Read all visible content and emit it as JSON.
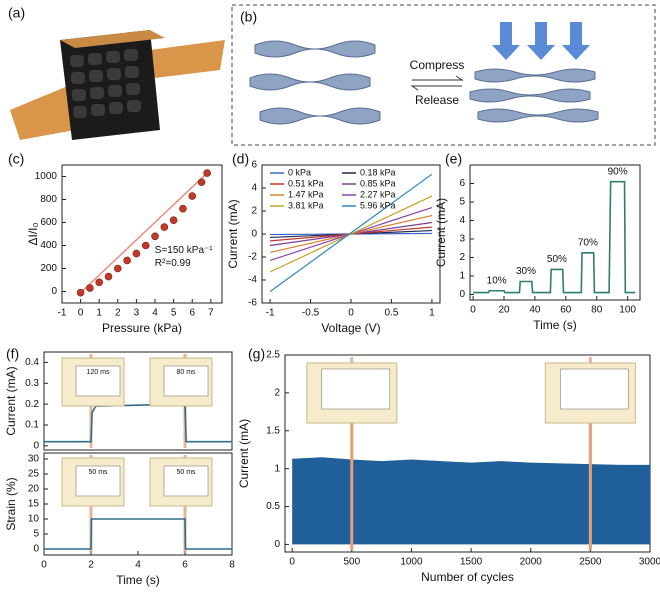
{
  "panels": {
    "a": {
      "label": "(a)"
    },
    "b": {
      "label": "(b)",
      "compress": "Compress",
      "release": "Release"
    }
  },
  "chart_data": [
    {
      "type": "scatter",
      "label": "(c)",
      "xlabel": "Pressure (kPa)",
      "ylabel": "ΔI/I₀",
      "x": [
        0,
        0.5,
        1,
        1.5,
        2,
        2.5,
        3,
        3.5,
        4,
        4.5,
        5,
        5.5,
        6,
        6.5,
        6.8
      ],
      "values": [
        -10,
        30,
        80,
        130,
        200,
        270,
        330,
        400,
        480,
        560,
        620,
        720,
        830,
        950,
        1030
      ],
      "color": "#c0392b",
      "fit": {
        "x": [
          0,
          6.8
        ],
        "values": [
          -10,
          1030
        ],
        "color": "#e8907f"
      },
      "annotations": [
        "S=150 kPa⁻¹",
        "R²=0.99"
      ],
      "xlim": [
        -1,
        7.6
      ],
      "ylim": [
        -100,
        1100
      ],
      "xticks": [
        -1,
        0,
        1,
        2,
        3,
        4,
        5,
        6,
        7
      ],
      "yticks": [
        0,
        200,
        400,
        600,
        800,
        1000
      ]
    },
    {
      "type": "line",
      "label": "(d)",
      "xlabel": "Voltage (V)",
      "ylabel": "Current (mA)",
      "x": [
        -1,
        1
      ],
      "series": [
        {
          "name": "0 kPa",
          "color": "#3a62c9",
          "values": [
            -0.05,
            0.05
          ]
        },
        {
          "name": "0.18 kPa",
          "color": "#1d2a52",
          "values": [
            -0.3,
            0.3
          ]
        },
        {
          "name": "0.51 kPa",
          "color": "#c0392b",
          "values": [
            -0.6,
            0.6
          ]
        },
        {
          "name": "0.85 kPa",
          "color": "#7d3c98",
          "values": [
            -1.0,
            1.0
          ]
        },
        {
          "name": "1.47 kPa",
          "color": "#d9822b",
          "values": [
            -1.6,
            1.6
          ]
        },
        {
          "name": "2.27 kPa",
          "color": "#8e44ad",
          "values": [
            -2.3,
            2.3
          ]
        },
        {
          "name": "3.81 kPa",
          "color": "#c9a227",
          "values": [
            -3.3,
            3.3
          ]
        },
        {
          "name": "5.96 kPa",
          "color": "#2e86c1",
          "values": [
            -5.0,
            5.2
          ]
        }
      ],
      "xlim": [
        -1.1,
        1.1
      ],
      "ylim": [
        -6,
        6
      ],
      "xticks": [
        -1,
        -0.5,
        0,
        0.5,
        1
      ],
      "yticks": [
        -6,
        -4,
        -2,
        0,
        2,
        4,
        6
      ]
    },
    {
      "type": "line",
      "label": "(e)",
      "xlabel": "Time (s)",
      "ylabel": "Current (mA)",
      "x": [
        0,
        10,
        10.5,
        20,
        20.5,
        30,
        30.5,
        38,
        38.5,
        50,
        50.5,
        58,
        58.5,
        70,
        70.5,
        78,
        78.5,
        88,
        89,
        98,
        98.5,
        105
      ],
      "values": [
        0.1,
        0.1,
        0.2,
        0.2,
        0.1,
        0.1,
        0.7,
        0.7,
        0.1,
        0.1,
        1.35,
        1.35,
        0.1,
        0.1,
        2.25,
        2.25,
        0.1,
        0.1,
        6.1,
        6.1,
        0.1,
        0.1
      ],
      "color": "#2e7d6e",
      "step_labels": [
        "10%",
        "30%",
        "50%",
        "70%",
        "90%"
      ],
      "xlim": [
        -2,
        108
      ],
      "ylim": [
        -0.3,
        7
      ],
      "xticks": [
        0,
        20,
        40,
        60,
        80,
        100
      ],
      "yticks": [
        0,
        1,
        2,
        3,
        4,
        5,
        6
      ]
    },
    {
      "type": "line",
      "label": "(f)",
      "ylabel": "Current (mA)",
      "x": [
        0,
        2,
        2.05,
        2.2,
        6,
        6.05,
        8
      ],
      "values": [
        0.02,
        0.02,
        0.16,
        0.19,
        0.2,
        0.02,
        0.02
      ],
      "color": "#2e6e8e",
      "markers": [
        2,
        6
      ],
      "insets": [
        "120 ms",
        "80 ms"
      ],
      "xlim": [
        0,
        8
      ],
      "ylim": [
        -0.02,
        0.45
      ],
      "yticks": [
        0,
        0.1,
        0.2,
        0.3,
        0.4
      ]
    },
    {
      "type": "line",
      "xlabel": "Time (s)",
      "ylabel": "Strain (%)",
      "x": [
        0,
        2,
        2.02,
        6,
        6.02,
        8
      ],
      "values": [
        0,
        0,
        10,
        10,
        0,
        0
      ],
      "color": "#2e6e8e",
      "markers": [
        2,
        6
      ],
      "insets": [
        "50 ms",
        "50 ms"
      ],
      "xlim": [
        0,
        8
      ],
      "ylim": [
        -2,
        32
      ],
      "xticks": [
        0,
        2,
        4,
        6,
        8
      ],
      "yticks": [
        0,
        5,
        10,
        15,
        20,
        25,
        30
      ]
    },
    {
      "type": "area",
      "label": "(g)",
      "xlabel": "Number of cycles",
      "ylabel": "Current (mA)",
      "x": [
        0,
        250,
        500,
        750,
        1000,
        1250,
        1500,
        1750,
        2000,
        2250,
        2500,
        2750,
        3000
      ],
      "values": [
        1.13,
        1.15,
        1.12,
        1.1,
        1.12,
        1.1,
        1.08,
        1.1,
        1.08,
        1.07,
        1.06,
        1.05,
        1.05
      ],
      "color": "#1f5f9a",
      "markers": [
        500,
        2500
      ],
      "xlim": [
        -60,
        3000
      ],
      "ylim": [
        -0.1,
        2.5
      ],
      "xticks": [
        0,
        500,
        1000,
        1500,
        2000,
        2500,
        3000
      ],
      "yticks": [
        0,
        0.5,
        1,
        1.5,
        2,
        2.5
      ]
    }
  ]
}
